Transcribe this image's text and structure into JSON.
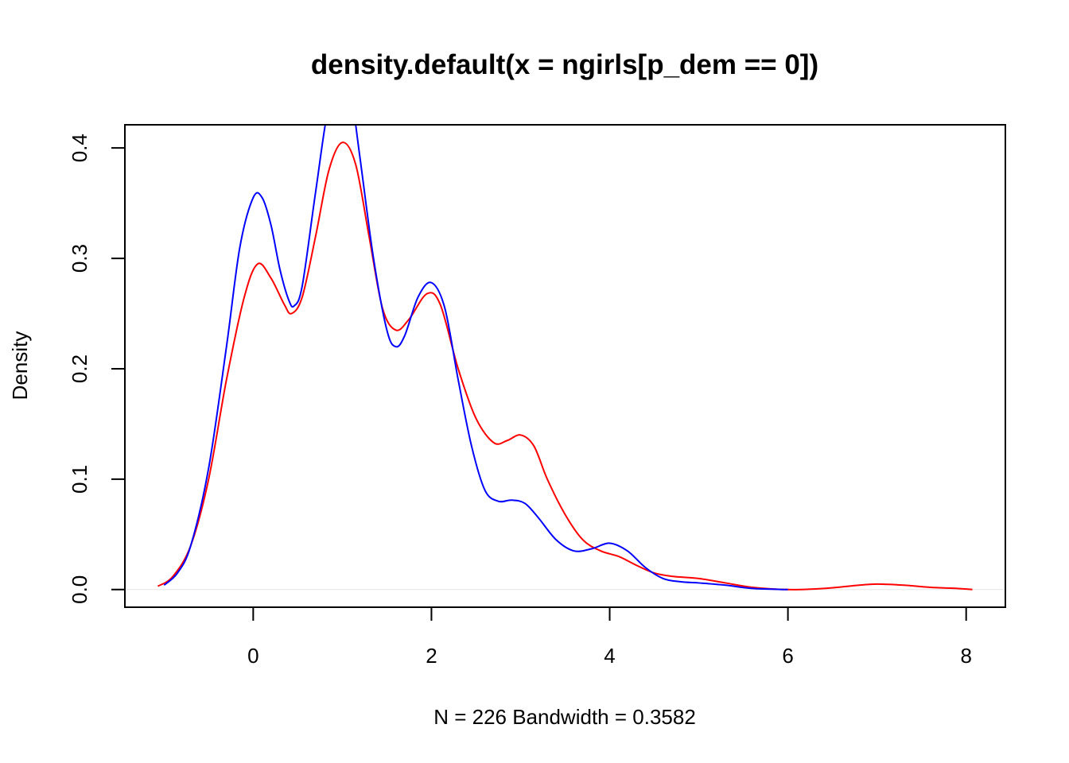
{
  "chart_data": {
    "type": "line",
    "title": "density.default(x = ngirls[p_dem == 0])",
    "xlabel": "N = 226   Bandwidth = 0.3582",
    "ylabel": "Density",
    "xlim": [
      -1.44,
      8.44
    ],
    "ylim": [
      -0.016,
      0.421
    ],
    "x_ticks": [
      0,
      2,
      4,
      6,
      8
    ],
    "y_ticks": [
      0.0,
      0.1,
      0.2,
      0.3,
      0.4
    ],
    "x_tick_labels": [
      "0",
      "2",
      "4",
      "6",
      "8"
    ],
    "y_tick_labels": [
      "0.0",
      "0.1",
      "0.2",
      "0.3",
      "0.4"
    ],
    "grid": false,
    "legend": "none",
    "baseline_color": "#e6e6e6",
    "series": [
      {
        "color": "#ff0000",
        "x": [
          -1.07,
          -0.9,
          -0.7,
          -0.5,
          -0.3,
          -0.1,
          0.05,
          0.2,
          0.35,
          0.43,
          0.55,
          0.7,
          0.85,
          1.0,
          1.15,
          1.3,
          1.45,
          1.6,
          1.75,
          1.95,
          2.1,
          2.3,
          2.5,
          2.7,
          2.85,
          3.0,
          3.15,
          3.3,
          3.5,
          3.7,
          3.9,
          4.1,
          4.3,
          4.5,
          4.7,
          5.0,
          5.3,
          5.6,
          6.0,
          6.4,
          6.8,
          7.0,
          7.3,
          7.6,
          7.9,
          8.07
        ],
        "y": [
          0.003,
          0.012,
          0.04,
          0.1,
          0.19,
          0.265,
          0.295,
          0.282,
          0.258,
          0.25,
          0.265,
          0.32,
          0.38,
          0.405,
          0.385,
          0.32,
          0.255,
          0.235,
          0.245,
          0.268,
          0.258,
          0.2,
          0.155,
          0.133,
          0.135,
          0.14,
          0.13,
          0.1,
          0.068,
          0.045,
          0.035,
          0.03,
          0.022,
          0.015,
          0.012,
          0.01,
          0.006,
          0.002,
          0.0,
          0.001,
          0.004,
          0.005,
          0.004,
          0.002,
          0.001,
          0.0
        ]
      },
      {
        "color": "#0000ff",
        "x": [
          -1.0,
          -0.85,
          -0.7,
          -0.5,
          -0.3,
          -0.15,
          0.0,
          0.1,
          0.2,
          0.3,
          0.4,
          0.46,
          0.55,
          0.7,
          0.85,
          1.0,
          1.08,
          1.2,
          1.35,
          1.5,
          1.6,
          1.7,
          1.85,
          2.0,
          2.15,
          2.3,
          2.45,
          2.6,
          2.75,
          2.9,
          3.05,
          3.2,
          3.4,
          3.6,
          3.8,
          4.0,
          4.2,
          4.4,
          4.6,
          4.8,
          5.0,
          5.3,
          5.6,
          6.0
        ],
        "y": [
          0.004,
          0.015,
          0.04,
          0.11,
          0.22,
          0.31,
          0.355,
          0.355,
          0.33,
          0.29,
          0.262,
          0.257,
          0.275,
          0.36,
          0.44,
          0.47,
          0.46,
          0.39,
          0.3,
          0.235,
          0.22,
          0.23,
          0.265,
          0.278,
          0.255,
          0.19,
          0.13,
          0.09,
          0.08,
          0.081,
          0.078,
          0.065,
          0.045,
          0.035,
          0.037,
          0.042,
          0.035,
          0.02,
          0.01,
          0.007,
          0.006,
          0.004,
          0.001,
          0.0
        ]
      }
    ]
  }
}
